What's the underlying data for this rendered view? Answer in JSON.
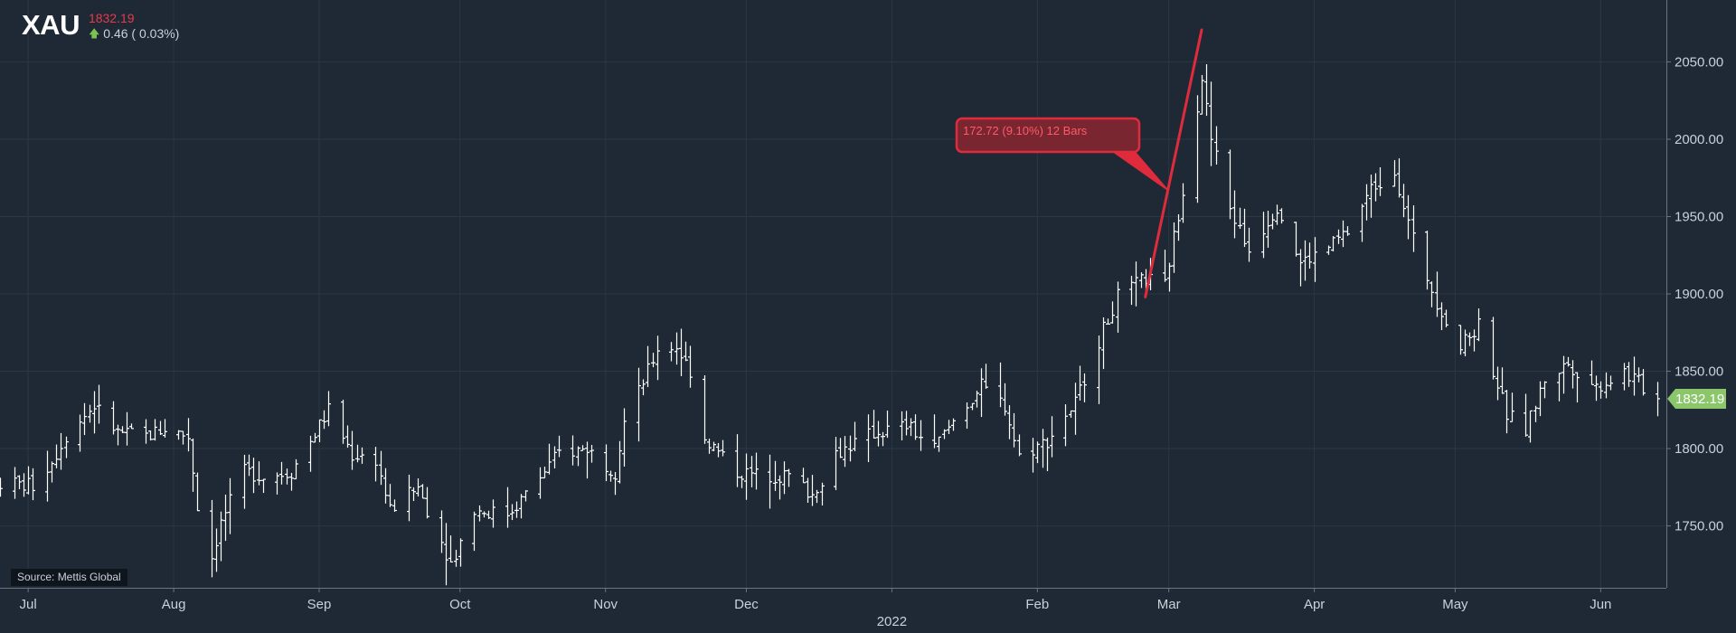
{
  "header": {
    "symbol": "XAU",
    "last_price": "1832.19",
    "change_text": "0.46 ( 0.03%)",
    "change_direction_icon": "up-arrow-icon",
    "last_color": "#e83a4a",
    "up_color": "#7cc24e"
  },
  "source": "Source: Mettis Global",
  "price_tag": {
    "value": 1832.19,
    "label": "1832.19",
    "color": "#8bc66a"
  },
  "annotation": {
    "label": "172.72 (9.10%) 12 Bars",
    "from": {
      "date": "2022-02-24",
      "value": 1898.0
    },
    "to": {
      "date": "2022-03-08",
      "value": 2070.7
    },
    "color": "#e02b3c"
  },
  "chart_data": {
    "type": "ohlc-bar",
    "x_axis": {
      "type": "date",
      "range": [
        "2021-06-25",
        "2022-06-15"
      ],
      "tick_labels": [
        "Jul",
        "Aug",
        "Sep",
        "Oct",
        "Nov",
        "Dec",
        "Feb",
        "Mar",
        "Apr",
        "May",
        "Jun"
      ],
      "tick_dates": [
        "2021-07-01",
        "2021-08-01",
        "2021-09-01",
        "2021-10-01",
        "2021-11-01",
        "2021-12-01",
        "2022-02-01",
        "2022-03-01",
        "2022-04-01",
        "2022-05-01",
        "2022-06-01"
      ],
      "year_label": "2022",
      "year_date": "2022-01-01"
    },
    "y_axis": {
      "position": "right",
      "range": [
        1710,
        2090
      ],
      "ticks": [
        1750,
        1800,
        1850,
        1900,
        1950,
        2000,
        2050
      ],
      "tick_labels": [
        "1750.00",
        "1800.00",
        "1850.00",
        "1900.00",
        "1950.00",
        "2000.00",
        "2050.00"
      ]
    },
    "grid": true,
    "bar_color": "#ffffff",
    "background": "#1e2935",
    "keypoints": [
      [
        "2021-06-25",
        1778
      ],
      [
        "2021-07-02",
        1776
      ],
      [
        "2021-07-06",
        1792
      ],
      [
        "2021-07-09",
        1808
      ],
      [
        "2021-07-15",
        1828
      ],
      [
        "2021-07-20",
        1810
      ],
      [
        "2021-07-26",
        1808
      ],
      [
        "2021-07-30",
        1813
      ],
      [
        "2021-08-04",
        1808
      ],
      [
        "2021-08-06",
        1763
      ],
      [
        "2021-08-09",
        1730
      ],
      [
        "2021-08-11",
        1752
      ],
      [
        "2021-08-16",
        1785
      ],
      [
        "2021-08-20",
        1782
      ],
      [
        "2021-08-26",
        1785
      ],
      [
        "2021-09-03",
        1825
      ],
      [
        "2021-09-08",
        1796
      ],
      [
        "2021-09-13",
        1793
      ],
      [
        "2021-09-16",
        1760
      ],
      [
        "2021-09-22",
        1775
      ],
      [
        "2021-09-29",
        1726
      ],
      [
        "2021-10-04",
        1760
      ],
      [
        "2021-10-11",
        1758
      ],
      [
        "2021-10-15",
        1770
      ],
      [
        "2021-10-22",
        1797
      ],
      [
        "2021-10-28",
        1800
      ],
      [
        "2021-11-03",
        1785
      ],
      [
        "2021-11-05",
        1817
      ],
      [
        "2021-11-10",
        1850
      ],
      [
        "2021-11-12",
        1865
      ],
      [
        "2021-11-16",
        1866
      ],
      [
        "2021-11-19",
        1850
      ],
      [
        "2021-11-22",
        1807
      ],
      [
        "2021-11-29",
        1785
      ],
      [
        "2021-12-03",
        1783
      ],
      [
        "2021-12-10",
        1782
      ],
      [
        "2021-12-15",
        1770
      ],
      [
        "2021-12-20",
        1797
      ],
      [
        "2021-12-28",
        1810
      ],
      [
        "2022-01-04",
        1815
      ],
      [
        "2022-01-10",
        1800
      ],
      [
        "2022-01-14",
        1818
      ],
      [
        "2022-01-20",
        1840
      ],
      [
        "2022-01-25",
        1828
      ],
      [
        "2022-01-28",
        1795
      ],
      [
        "2022-02-03",
        1805
      ],
      [
        "2022-02-09",
        1830
      ],
      [
        "2022-02-14",
        1870
      ],
      [
        "2022-02-18",
        1898
      ],
      [
        "2022-02-24",
        1910
      ],
      [
        "2022-02-28",
        1905
      ],
      [
        "2022-03-04",
        1968
      ],
      [
        "2022-03-08",
        2040
      ],
      [
        "2022-03-10",
        2000
      ],
      [
        "2022-03-14",
        1955
      ],
      [
        "2022-03-18",
        1928
      ],
      [
        "2022-03-24",
        1957
      ],
      [
        "2022-03-29",
        1920
      ],
      [
        "2022-04-04",
        1930
      ],
      [
        "2022-04-08",
        1940
      ],
      [
        "2022-04-13",
        1968
      ],
      [
        "2022-04-18",
        1980
      ],
      [
        "2022-04-22",
        1935
      ],
      [
        "2022-04-27",
        1895
      ],
      [
        "2022-05-02",
        1865
      ],
      [
        "2022-05-06",
        1880
      ],
      [
        "2022-05-12",
        1822
      ],
      [
        "2022-05-16",
        1812
      ],
      [
        "2022-05-20",
        1845
      ],
      [
        "2022-05-25",
        1855
      ],
      [
        "2022-05-31",
        1840
      ],
      [
        "2022-06-06",
        1850
      ],
      [
        "2022-06-10",
        1840
      ],
      [
        "2022-06-13",
        1832
      ]
    ]
  }
}
